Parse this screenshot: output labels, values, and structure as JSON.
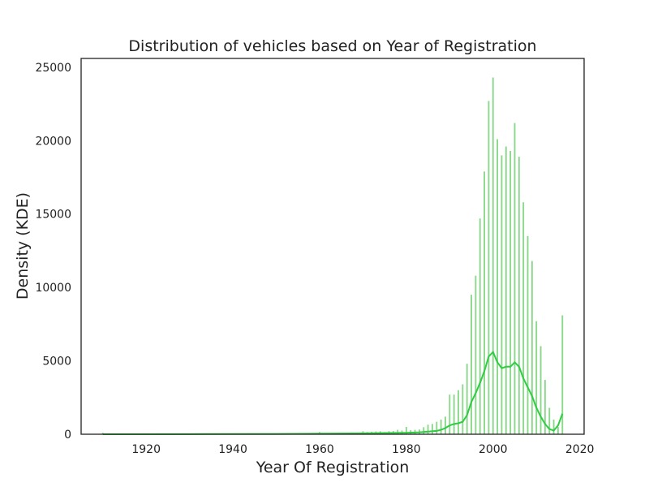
{
  "chart_data": {
    "type": "bar",
    "title": "Distribution of vehicles based on Year of Registration",
    "xlabel": "Year Of Registration",
    "ylabel": "Density (KDE)",
    "xlim": [
      1905,
      2021
    ],
    "ylim": [
      0,
      25600
    ],
    "xticks": [
      1920,
      1940,
      1960,
      1980,
      2000,
      2020
    ],
    "yticks": [
      0,
      5000,
      10000,
      15000,
      20000,
      25000
    ],
    "grid": false,
    "legend": "none",
    "bar_color": "#8ad98a",
    "line_color": "#2ecc40",
    "histogram": {
      "years": [
        1910,
        1920,
        1930,
        1940,
        1950,
        1960,
        1965,
        1968,
        1969,
        1970,
        1971,
        1972,
        1973,
        1974,
        1975,
        1976,
        1977,
        1978,
        1979,
        1980,
        1981,
        1982,
        1983,
        1984,
        1985,
        1986,
        1987,
        1988,
        1989,
        1990,
        1991,
        1992,
        1993,
        1994,
        1995,
        1996,
        1997,
        1998,
        1999,
        2000,
        2001,
        2002,
        2003,
        2004,
        2005,
        2006,
        2007,
        2008,
        2009,
        2010,
        2011,
        2012,
        2013,
        2014,
        2015,
        2016
      ],
      "counts": [
        100,
        30,
        30,
        40,
        50,
        150,
        70,
        90,
        110,
        200,
        150,
        170,
        190,
        200,
        150,
        210,
        220,
        300,
        250,
        500,
        280,
        300,
        320,
        480,
        650,
        700,
        850,
        1000,
        1200,
        2700,
        2700,
        3000,
        3400,
        4800,
        9500,
        10800,
        14700,
        17900,
        22700,
        24300,
        20100,
        19000,
        19600,
        19300,
        21200,
        18900,
        15800,
        13500,
        11800,
        7700,
        6000,
        3700,
        1800,
        1000,
        500,
        8100
      ]
    },
    "kde": {
      "x": [
        1910,
        1930,
        1950,
        1960,
        1970,
        1975,
        1980,
        1983,
        1985,
        1987,
        1988,
        1989,
        1990,
        1991,
        1992,
        1993,
        1994,
        1995,
        1996,
        1997,
        1998,
        1999,
        2000,
        2001,
        2002,
        2003,
        2004,
        2005,
        2006,
        2007,
        2008,
        2009,
        2010,
        2011,
        2012,
        2013,
        2014,
        2015,
        2016
      ],
      "y": [
        0,
        10,
        20,
        40,
        60,
        80,
        100,
        130,
        180,
        230,
        300,
        420,
        600,
        700,
        750,
        850,
        1300,
        2200,
        2800,
        3500,
        4300,
        5300,
        5600,
        4900,
        4500,
        4600,
        4600,
        4900,
        4600,
        3800,
        3200,
        2600,
        1800,
        1200,
        700,
        350,
        250,
        600,
        1400
      ]
    }
  }
}
